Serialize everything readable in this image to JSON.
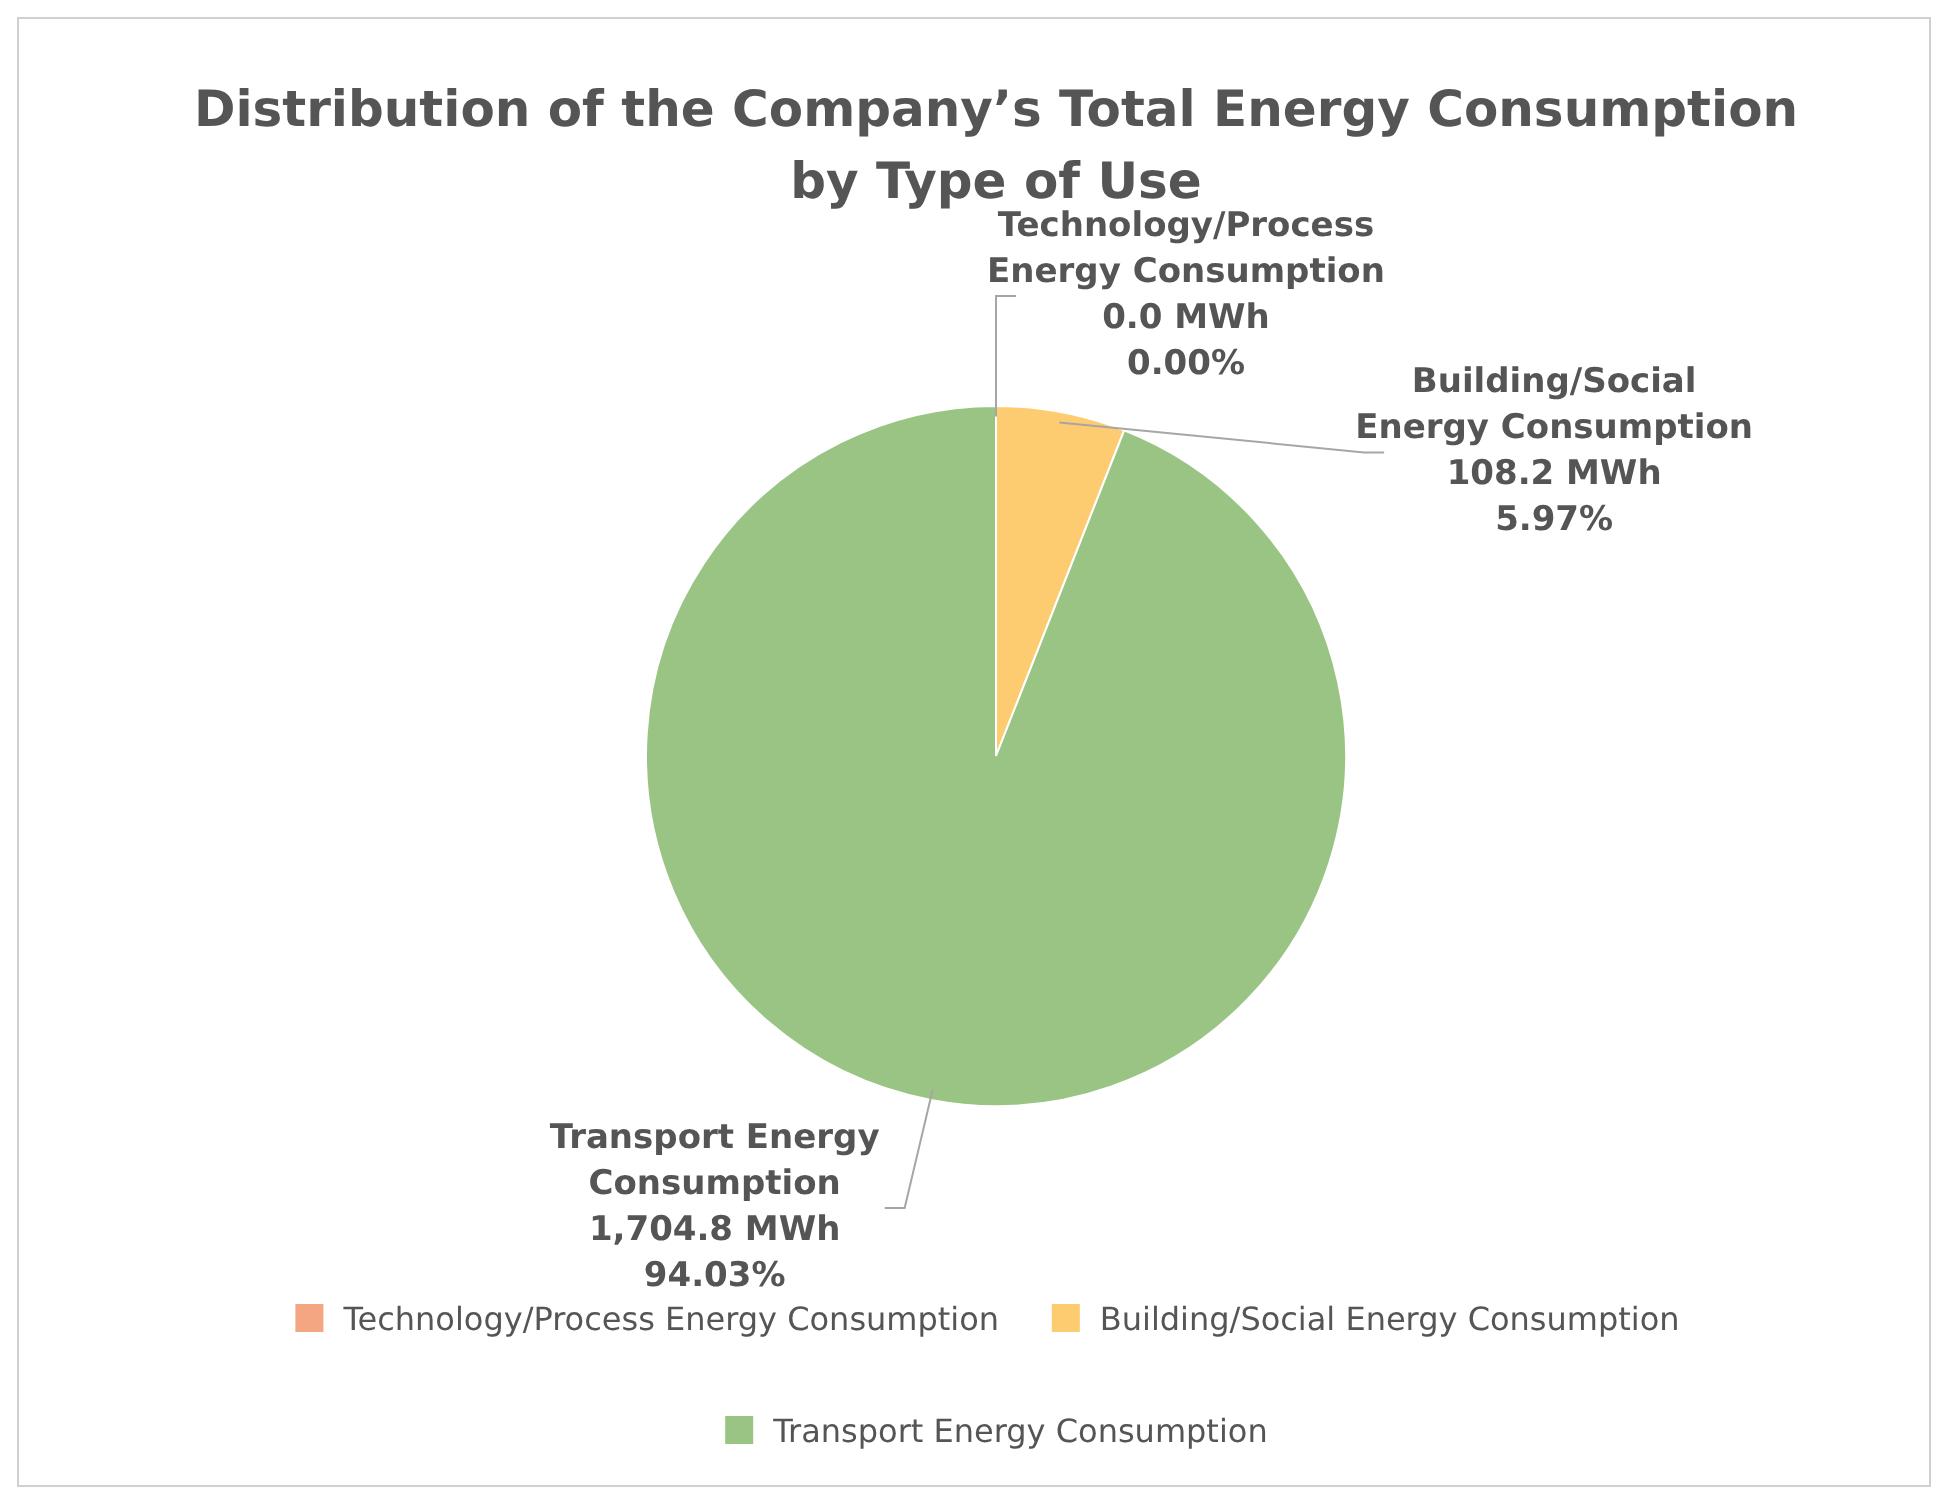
{
  "chart_data": {
    "type": "pie",
    "title": "Distribution of the Company’s Total Energy Consumption by Type of Use",
    "categories": [
      "Technology/Process Energy Consumption",
      "Building/Social Energy Consumption",
      "Transport Energy Consumption"
    ],
    "values": [
      0.0,
      108.2,
      1704.8
    ],
    "colors": [
      "#f4a582",
      "#fdcc70",
      "#99c483"
    ],
    "value_labels": [
      "0.0 MWh\n0.00%",
      "108.2 MWh\n5.97%",
      "1,704.8 MWh\n94.03%"
    ],
    "legend": "bottom"
  }
}
